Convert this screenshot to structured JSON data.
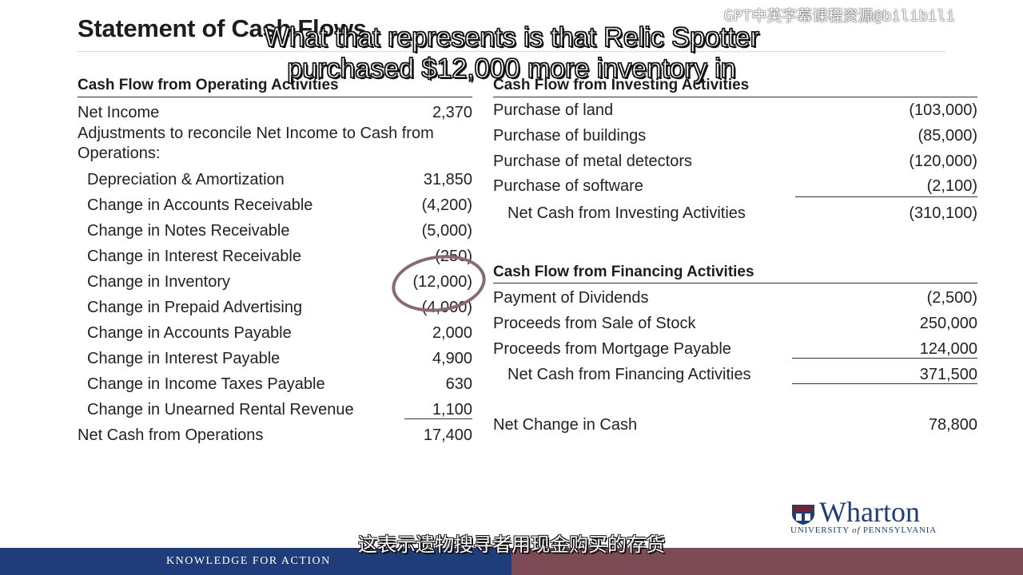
{
  "slide": {
    "title": "Statement of Cash Flows"
  },
  "watermark": "GPT中英字幕课程资源@bilibili",
  "captions": {
    "en_line1": "What that represents is that Relic Spotter",
    "en_line2": "purchased $12,000 more inventory in",
    "zh": "这表示遗物搜寻者用现金购买的存货"
  },
  "operating": {
    "heading": "Cash Flow from Operating Activities",
    "net_income_label": "Net Income",
    "net_income_value": "2,370",
    "adjust_label_1": "Adjustments to reconcile Net Income to Cash from",
    "adjust_label_2": "Operations:",
    "items": [
      {
        "label": "Depreciation & Amortization",
        "value": "31,850"
      },
      {
        "label": "Change in Accounts Receivable",
        "value": "(4,200)"
      },
      {
        "label": "Change in Notes Receivable",
        "value": "(5,000)"
      },
      {
        "label": "Change in Interest Receivable",
        "value": "(250)"
      },
      {
        "label": "Change in Inventory",
        "value": "(12,000)"
      },
      {
        "label": "Change in Prepaid Advertising",
        "value": "(4,000)"
      },
      {
        "label": "Change in Accounts Payable",
        "value": "2,000"
      },
      {
        "label": "Change in Interest Payable",
        "value": "4,900"
      },
      {
        "label": "Change in Income Taxes Payable",
        "value": "630"
      },
      {
        "label": "Change in Unearned Rental Revenue",
        "value": "1,100"
      }
    ],
    "total_label": "Net Cash from Operations",
    "total_value": "17,400"
  },
  "investing": {
    "heading": "Cash Flow from Investing Activities",
    "items": [
      {
        "label": "Purchase of land",
        "value": "(103,000)"
      },
      {
        "label": "Purchase of buildings",
        "value": "(85,000)"
      },
      {
        "label": "Purchase of metal detectors",
        "value": "(120,000)"
      },
      {
        "label": "Purchase of software",
        "value": "(2,100)"
      }
    ],
    "total_label": "Net Cash from Investing Activities",
    "total_value": "(310,100)"
  },
  "financing": {
    "heading": "Cash Flow from Financing Activities",
    "items": [
      {
        "label": "Payment of Dividends",
        "value": "(2,500)"
      },
      {
        "label": "Proceeds from Sale of Stock",
        "value": "250,000"
      },
      {
        "label": "Proceeds from Mortgage Payable",
        "value": "124,000"
      }
    ],
    "total_label": "Net Cash from Financing Activities",
    "total_value": "371,500"
  },
  "net_change": {
    "label": "Net Change in Cash",
    "value": "78,800"
  },
  "footer": {
    "tagline": "KNOWLEDGE FOR ACTION"
  },
  "logo": {
    "name": "Wharton",
    "sub_a": "UNIVERSITY ",
    "sub_b": "of",
    "sub_c": " PENNSYLVANIA"
  },
  "colors": {
    "navy": "#1f3d7a",
    "maroon": "#7d4b56",
    "circle": "#8a6a6c"
  }
}
